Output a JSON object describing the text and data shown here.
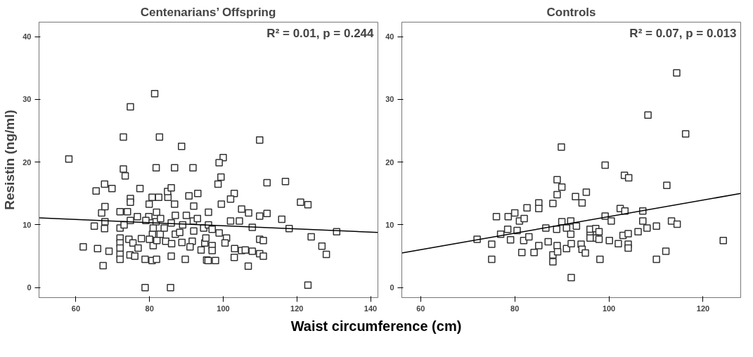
{
  "chart_data": [
    {
      "type": "scatter",
      "title": "Centenarians’ Offspring",
      "ylabel": "Resistin (ng/ml)",
      "xlabel": "Waist circumference (cm)",
      "grid": false,
      "xlim": [
        50,
        142
      ],
      "ylim": [
        -1.6,
        42.3
      ],
      "xticks": [
        60,
        80,
        100,
        120,
        140
      ],
      "yticks": [
        0,
        10,
        20,
        30,
        40
      ],
      "annotations": [
        "R² = 0.01, p = 0.244"
      ],
      "series": [
        {
          "marker": "square",
          "color": "#333333",
          "x": [
            58.1,
            62,
            65.5,
            65,
            65.9,
            67,
            67.8,
            67.9,
            67.9,
            67.8,
            67.4,
            69,
            69.8,
            72,
            72,
            72,
            72,
            72,
            72,
            72,
            72.9,
            72.9,
            73.4,
            74,
            73.1,
            74.8,
            74.8,
            74.8,
            74.8,
            74.4,
            74.7,
            75.5,
            76,
            76.9,
            76.7,
            77.4,
            77.8,
            78.8,
            78.8,
            79.8,
            79.9,
            80.7,
            80.8,
            81,
            80.7,
            81.4,
            81.8,
            81.9,
            81.8,
            81.9,
            82.5,
            82.7,
            82.9,
            83.5,
            84.4,
            85,
            84.9,
            85.9,
            85.7,
            85.9,
            85.9,
            86.8,
            87,
            86.8,
            88.7,
            88.2,
            88.8,
            89.7,
            90,
            90.7,
            91.8,
            91.6,
            91.9,
            93.1,
            93.8,
            94,
            94.7,
            95.5,
            95,
            92,
            93,
            94,
            91,
            96,
            96,
            92,
            89,
            87,
            86,
            84,
            83,
            82,
            81,
            80,
            79,
            109.9,
            100,
            98.9,
            99.4,
            98.6,
            103,
            102,
            99.5,
            111.9,
            116.9,
            121,
            123,
            105,
            106.9,
            109.9,
            111.9,
            115.9,
            107.9,
            117.9,
            130.8,
            123.9,
            126.8,
            128,
            109.9,
            110.9,
            103.1,
            105,
            106,
            107.9,
            109.9,
            110.9,
            103,
            106.8,
            95.9,
            97.9,
            123,
            97,
            98.9,
            100.9,
            102,
            104.4,
            95.3,
            97,
            97,
            100.5
          ],
          "values": [
            20.5,
            6.5,
            15.4,
            9.8,
            6.2,
            11.9,
            16.5,
            12.9,
            10.5,
            9.4,
            3.5,
            5.8,
            15.8,
            9.5,
            12.1,
            7.9,
            7.1,
            6.3,
            5.3,
            4.5,
            24,
            18.9,
            17.8,
            12.1,
            10,
            28.8,
            14.2,
            13.6,
            10.7,
            7.7,
            5.2,
            7.1,
            5,
            6.3,
            11.3,
            15.8,
            7.8,
            4.5,
            0,
            11.3,
            13.3,
            14.4,
            8.5,
            6.7,
            4.3,
            30.9,
            19.1,
            4.5,
            10.5,
            12,
            14.4,
            24,
            8.5,
            null,
            7.4,
            14.4,
            15.3,
            15.9,
            0,
            10.3,
            5,
            19.1,
            8.5,
            13.3,
            22.5,
            8.8,
            7.2,
            4.5,
            11.5,
            14.6,
            19.1,
            7.4,
            10.6,
            15,
            null,
            null,
            9.5,
            4.4,
            7.1,
            9,
            11,
            6,
            6.5,
            10,
            12,
            13,
            10,
            11.5,
            7,
            9.5,
            11,
            7.5,
            9.5,
            7.7,
            10.7,
            23.5,
            20.7,
            19.9,
            17.6,
            16.5,
            15,
            14.1,
            13.3,
            16.7,
            16.9,
            13.6,
            13.2,
            12.5,
            11.9,
            11.4,
            11.8,
            10.9,
            9.6,
            9.4,
            8.9,
            8.1,
            6.6,
            5.3,
            7.7,
            7.5,
            6.2,
            5.9,
            6,
            5.8,
            5.4,
            5,
            4.8,
            3.4,
            4.3,
            4.3,
            0.4,
            9.3,
            8.7,
            7.9,
            10.6,
            10.6,
            7.9,
            6.7,
            5.9,
            7.1
          ]
        },
        {
          "type": "line",
          "color": "#000000",
          "line_style": "solid",
          "x": [
            50,
            142
          ],
          "values": [
            11.1,
            8.8
          ]
        }
      ]
    },
    {
      "type": "scatter",
      "title": "Controls",
      "grid": false,
      "xlim": [
        56,
        128
      ],
      "ylim": [
        -1.6,
        42.3
      ],
      "xticks": [
        60,
        80,
        100,
        120
      ],
      "yticks": [
        0,
        10,
        20,
        30,
        40
      ],
      "annotations": [
        "R² = 0.07, p = 0.013"
      ],
      "series": [
        {
          "marker": "square",
          "color": "#333333",
          "x": [
            72,
            75.1,
            75.1,
            76.1,
            77,
            78.5,
            78.6,
            79.1,
            80,
            80.5,
            81,
            81.9,
            82,
            81.5,
            82.6,
            83,
            84.1,
            85.1,
            85.1,
            85.1,
            86.6,
            87.1,
            88.1,
            88.1,
            88.1,
            89,
            89,
            88.9,
            89,
            89.1,
            89.9,
            90,
            92.9,
            94.3,
            95.2,
            99.2,
            103.3,
            104.2,
            108.3,
            114.4,
            116.3,
            112.3,
            102.4,
            103.4,
            107.2,
            99.2,
            100.5,
            107.2,
            113.3,
            114.5,
            90,
            91.9,
            93.1,
            91,
            91.9,
            96,
            97.2,
            97.9,
            96,
            97.1,
            97.9,
            100.1,
            102,
            103,
            104.1,
            106.2,
            108.1,
            110.1,
            112.1,
            124.3,
            91,
            92,
            94.1,
            94.3,
            95,
            98.1,
            104.1,
            104.1,
            110.1,
            112.1,
            92,
            96
          ],
          "values": [
            7.7,
            6.9,
            4.5,
            11.3,
            8.5,
            9.3,
            11.3,
            7.6,
            11.9,
            9.1,
            10.6,
            7.5,
            11,
            5.6,
            12.7,
            8.1,
            5.6,
            13.5,
            12.6,
            6.7,
            9.5,
            7.3,
            13.4,
            5.2,
            4.1,
            17.2,
            14.8,
            9.3,
            6.7,
            5.7,
            22.4,
            16,
            14.5,
            13.5,
            15.2,
            19.5,
            17.9,
            17.5,
            27.5,
            34.2,
            24.5,
            16.3,
            12.6,
            12.2,
            12.2,
            11.4,
            10.6,
            10.6,
            10.6,
            10.1,
            10.5,
            10.6,
            9.8,
            9.5,
            8.5,
            9.3,
            9.4,
            8.9,
            8.3,
            7.9,
            7.7,
            7.5,
            7,
            8.3,
            8.6,
            8.9,
            9.5,
            9.8,
            null,
            7.5,
            6.2,
            7,
            6.9,
            6.1,
            5.5,
            4.5,
            6.9,
            6.3,
            4.5,
            5.8,
            1.6,
            7.9
          ]
        },
        {
          "type": "line",
          "color": "#000000",
          "line_style": "solid",
          "x": [
            56,
            128
          ],
          "values": [
            5.5,
            15
          ]
        }
      ]
    }
  ]
}
